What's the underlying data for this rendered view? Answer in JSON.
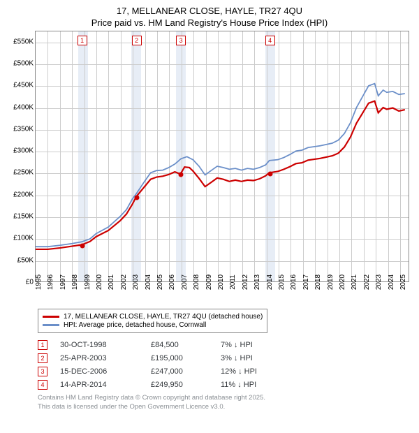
{
  "title_main": "17, MELLANEAR CLOSE, HAYLE, TR27 4QU",
  "title_sub": "Price paid vs. HM Land Registry's House Price Index (HPI)",
  "chart": {
    "type": "line",
    "x_start": 1995,
    "x_end": 2025.8,
    "y_min": 0,
    "y_max": 575000,
    "y_ticks": [
      0,
      50000,
      100000,
      150000,
      200000,
      250000,
      300000,
      350000,
      400000,
      450000,
      500000,
      550000
    ],
    "y_tick_labels": [
      "£0",
      "£50K",
      "£100K",
      "£150K",
      "£200K",
      "£250K",
      "£300K",
      "£350K",
      "£400K",
      "£450K",
      "£500K",
      "£550K"
    ],
    "x_ticks": [
      1995,
      1996,
      1997,
      1998,
      1999,
      2000,
      2001,
      2002,
      2003,
      2004,
      2005,
      2006,
      2007,
      2008,
      2009,
      2010,
      2011,
      2012,
      2013,
      2014,
      2015,
      2016,
      2017,
      2018,
      2019,
      2020,
      2021,
      2022,
      2023,
      2024,
      2025
    ],
    "grid_color": "#cccccc",
    "band_color": "#e7edf6",
    "bands": [
      {
        "from": 1998.5,
        "to": 1999.3
      },
      {
        "from": 2002.9,
        "to": 2003.7
      },
      {
        "from": 2006.55,
        "to": 2007.35
      },
      {
        "from": 2013.9,
        "to": 2014.7
      }
    ],
    "series": [
      {
        "name": "HPI: Average price, detached house, Cornwall",
        "color": "#6b8fc9",
        "width": 1.8,
        "data": [
          [
            1995,
            80000
          ],
          [
            1996,
            80000
          ],
          [
            1997,
            83000
          ],
          [
            1998,
            87000
          ],
          [
            1998.8,
            91000
          ],
          [
            1999.5,
            98000
          ],
          [
            2000,
            110000
          ],
          [
            2001,
            125000
          ],
          [
            2002,
            150000
          ],
          [
            2002.5,
            165000
          ],
          [
            2003,
            190000
          ],
          [
            2003.3,
            201000
          ],
          [
            2004,
            230000
          ],
          [
            2004.5,
            250000
          ],
          [
            2005,
            255000
          ],
          [
            2005.5,
            256000
          ],
          [
            2006,
            262000
          ],
          [
            2006.5,
            270000
          ],
          [
            2007,
            282000
          ],
          [
            2007.5,
            287000
          ],
          [
            2008,
            280000
          ],
          [
            2008.5,
            265000
          ],
          [
            2009,
            245000
          ],
          [
            2009.5,
            255000
          ],
          [
            2010,
            265000
          ],
          [
            2010.5,
            262000
          ],
          [
            2011,
            258000
          ],
          [
            2011.5,
            260000
          ],
          [
            2012,
            256000
          ],
          [
            2012.5,
            260000
          ],
          [
            2013,
            258000
          ],
          [
            2013.5,
            262000
          ],
          [
            2014,
            268000
          ],
          [
            2014.3,
            278000
          ],
          [
            2015,
            280000
          ],
          [
            2015.5,
            285000
          ],
          [
            2016,
            292000
          ],
          [
            2016.5,
            300000
          ],
          [
            2017,
            302000
          ],
          [
            2017.5,
            308000
          ],
          [
            2018,
            310000
          ],
          [
            2018.5,
            312000
          ],
          [
            2019,
            315000
          ],
          [
            2019.5,
            318000
          ],
          [
            2020,
            325000
          ],
          [
            2020.5,
            340000
          ],
          [
            2021,
            365000
          ],
          [
            2021.5,
            400000
          ],
          [
            2022,
            425000
          ],
          [
            2022.5,
            450000
          ],
          [
            2023,
            455000
          ],
          [
            2023.3,
            427000
          ],
          [
            2023.7,
            440000
          ],
          [
            2024,
            435000
          ],
          [
            2024.5,
            437000
          ],
          [
            2025,
            430000
          ],
          [
            2025.5,
            432000
          ]
        ]
      },
      {
        "name": "17, MELLANEAR CLOSE, HAYLE, TR27 4QU (detached house)",
        "color": "#cc0000",
        "width": 2.2,
        "data": [
          [
            1995,
            74000
          ],
          [
            1996,
            74000
          ],
          [
            1997,
            77000
          ],
          [
            1998,
            81000
          ],
          [
            1998.83,
            84500
          ],
          [
            1999.5,
            92000
          ],
          [
            2000,
            103000
          ],
          [
            2001,
            117000
          ],
          [
            2002,
            140000
          ],
          [
            2002.5,
            155000
          ],
          [
            2003,
            178000
          ],
          [
            2003.31,
            195000
          ],
          [
            2004,
            218000
          ],
          [
            2004.5,
            235000
          ],
          [
            2005,
            240000
          ],
          [
            2005.5,
            242000
          ],
          [
            2006,
            246000
          ],
          [
            2006.5,
            252000
          ],
          [
            2006.96,
            247000
          ],
          [
            2007.3,
            263000
          ],
          [
            2007.7,
            262000
          ],
          [
            2008,
            254000
          ],
          [
            2008.5,
            237000
          ],
          [
            2009,
            218000
          ],
          [
            2009.5,
            228000
          ],
          [
            2010,
            238000
          ],
          [
            2010.5,
            235000
          ],
          [
            2011,
            230000
          ],
          [
            2011.5,
            233000
          ],
          [
            2012,
            230000
          ],
          [
            2012.5,
            233000
          ],
          [
            2013,
            232000
          ],
          [
            2013.5,
            236000
          ],
          [
            2014,
            243000
          ],
          [
            2014.29,
            249950
          ],
          [
            2015,
            253000
          ],
          [
            2015.5,
            258000
          ],
          [
            2016,
            264000
          ],
          [
            2016.5,
            271000
          ],
          [
            2017,
            273000
          ],
          [
            2017.5,
            279000
          ],
          [
            2018,
            281000
          ],
          [
            2018.5,
            283000
          ],
          [
            2019,
            286000
          ],
          [
            2019.5,
            289000
          ],
          [
            2020,
            295000
          ],
          [
            2020.5,
            309000
          ],
          [
            2021,
            332000
          ],
          [
            2021.5,
            364000
          ],
          [
            2022,
            387000
          ],
          [
            2022.5,
            410000
          ],
          [
            2023,
            415000
          ],
          [
            2023.3,
            388000
          ],
          [
            2023.7,
            400000
          ],
          [
            2024,
            396000
          ],
          [
            2024.5,
            399000
          ],
          [
            2025,
            392000
          ],
          [
            2025.5,
            395000
          ]
        ]
      }
    ],
    "sale_points": [
      {
        "n": "1",
        "x": 1998.83,
        "y": 84500
      },
      {
        "n": "2",
        "x": 2003.31,
        "y": 195000
      },
      {
        "n": "3",
        "x": 2006.96,
        "y": 247000
      },
      {
        "n": "4",
        "x": 2014.29,
        "y": 249950
      }
    ],
    "point_color": "#cc0000"
  },
  "legend": {
    "items": [
      {
        "color": "#cc0000",
        "label": "17, MELLANEAR CLOSE, HAYLE, TR27 4QU (detached house)"
      },
      {
        "color": "#6b8fc9",
        "label": "HPI: Average price, detached house, Cornwall"
      }
    ]
  },
  "table": {
    "rows": [
      {
        "n": "1",
        "date": "30-OCT-1998",
        "price": "£84,500",
        "diff": "7% ↓ HPI"
      },
      {
        "n": "2",
        "date": "25-APR-2003",
        "price": "£195,000",
        "diff": "3% ↓ HPI"
      },
      {
        "n": "3",
        "date": "15-DEC-2006",
        "price": "£247,000",
        "diff": "12% ↓ HPI"
      },
      {
        "n": "4",
        "date": "14-APR-2014",
        "price": "£249,950",
        "diff": "11% ↓ HPI"
      }
    ]
  },
  "footer_l1": "Contains HM Land Registry data © Crown copyright and database right 2025.",
  "footer_l2": "This data is licensed under the Open Government Licence v3.0."
}
